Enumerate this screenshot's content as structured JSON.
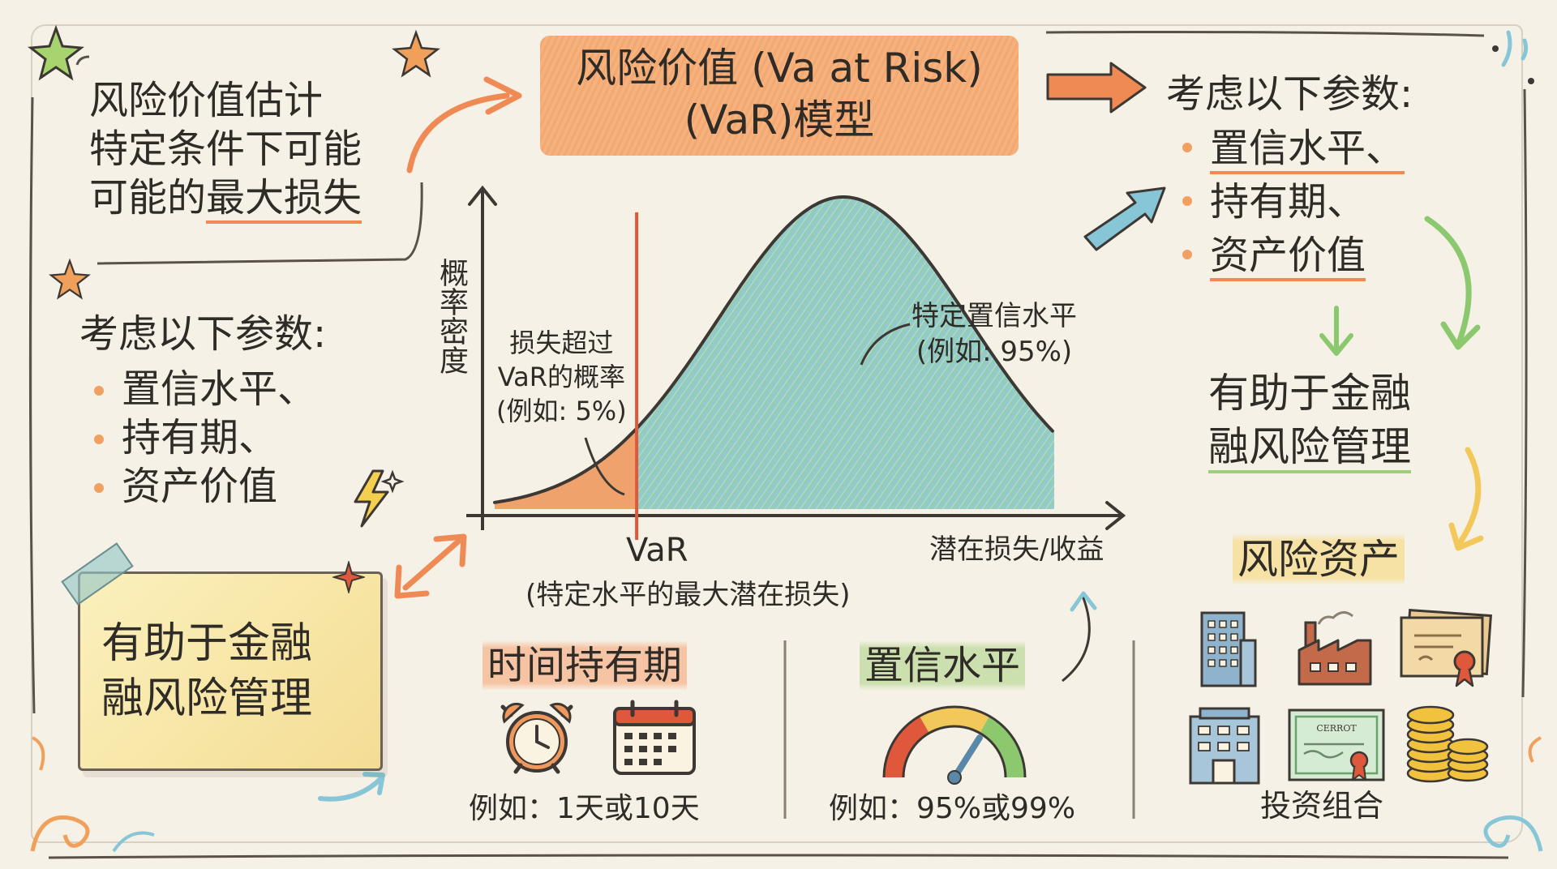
{
  "title": {
    "line1": "风险价值 (Va at Risk)",
    "line2": "(VaR)模型"
  },
  "top_left": {
    "line1": "风险价值估计",
    "line2": "特定条件下可能",
    "line3_prefix": "可能的",
    "line3_emphasis": "最大损失"
  },
  "left_params": {
    "heading": "考虑以下参数:",
    "items": [
      "置信水平、",
      "持有期、",
      "资产价值"
    ]
  },
  "left_note": {
    "line1": "有助于金融",
    "line2": "融风险管理"
  },
  "right_params": {
    "heading": "考虑以下参数:",
    "items": [
      "置信水平、",
      "持有期、",
      "资产价值"
    ]
  },
  "right_helps": {
    "line1": "有助于金融",
    "line2": "融风险管理"
  },
  "chart": {
    "ylabel": "概率密度",
    "xlabel": "潜在损失/收益",
    "var_label": "VaR",
    "var_caption": "(特定水平的最大潜在损失)",
    "tail_annotation": {
      "line1": "损失超过",
      "line2": "VaR的概率",
      "line3": "(例如: 5%)"
    },
    "confidence_annotation": {
      "line1": "特定置信水平",
      "line2": "(例如: 95%)"
    }
  },
  "chart_data": {
    "type": "area",
    "title": "",
    "xlabel": "潜在损失/收益",
    "ylabel": "概率密度",
    "distribution": "normal",
    "var_cutoff_quantile": 0.05,
    "tail_probability": 0.05,
    "confidence_level": 0.95,
    "series": [
      {
        "name": "损失超过VaR的概率",
        "region": "left-tail",
        "color": "#f0995f"
      },
      {
        "name": "特定置信水平",
        "region": "body",
        "color": "#8cc9a2"
      }
    ]
  },
  "holding_period": {
    "title": "时间持有期",
    "example": "例如：1天或10天",
    "icons": [
      "alarm-clock-icon",
      "calendar-icon"
    ]
  },
  "confidence_level": {
    "title": "置信水平",
    "example": "例如：95%或99%",
    "icons": [
      "gauge-icon"
    ]
  },
  "risk_assets": {
    "title": "风险资产",
    "caption": "投资组合",
    "icons": [
      "office-building-icon",
      "factory-icon",
      "certificate-icon",
      "bank-building-icon",
      "stock-certificate-icon",
      "coin-stack-icon"
    ],
    "cert_text": "CERROT"
  },
  "colors": {
    "orange": "#f0995f",
    "green": "#8cc9a2",
    "teal": "#86c6d6",
    "outline": "#3d3833",
    "accent_red": "#e0583b"
  }
}
